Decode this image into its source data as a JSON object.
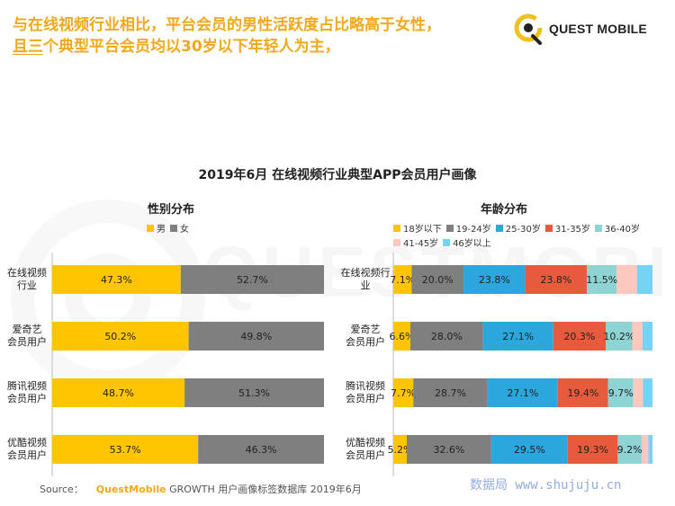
{
  "headline": {
    "line1": "与在线视频行业相比，平台会员的男性活跃度占比略高于女性，",
    "line2_emph": "且三",
    "line2_rest": "个典型平台会员均以30岁以下年轻人为主，"
  },
  "logo": {
    "text": "QUEST MOBILE",
    "watermark_text": "QUESTMOBILE"
  },
  "main_title": "2019年6月 在线视频行业典型APP会员用户画像",
  "source": {
    "prefix": "Source：",
    "brand": "QuestMobile",
    "text": "GROWTH 用户画像标签数据库 2019年6月"
  },
  "site_watermark": "数据局 www.shujuju.cn",
  "colors": {
    "accent": "#f0a91c",
    "male": "#ffc600",
    "female": "#7f7f7f",
    "age_18": "#ffc600",
    "age_19_24": "#7f7f7f",
    "age_25_30": "#2ba7de",
    "age_31_35": "#e85a3c",
    "age_36_40": "#8fd4d4",
    "age_41_45": "#ffc7bd",
    "age_46": "#77d2f6"
  },
  "chart_data": [
    {
      "type": "bar",
      "orientation": "horizontal-stacked-100",
      "title": "性别分布",
      "categories": [
        [
          "在线视频",
          "行业"
        ],
        [
          "爱奇艺",
          "会员用户"
        ],
        [
          "腾讯视频",
          "会员用户"
        ],
        [
          "优酷视频",
          "会员用户"
        ]
      ],
      "series": [
        {
          "name": "男",
          "color": "#ffc600",
          "values": [
            47.3,
            50.2,
            48.7,
            53.7
          ],
          "labels": [
            "47.3%",
            "50.2%",
            "48.7%",
            "53.7%"
          ]
        },
        {
          "name": "女",
          "color": "#7f7f7f",
          "values": [
            52.7,
            49.8,
            51.3,
            46.3
          ],
          "labels": [
            "52.7%",
            "49.8%",
            "51.3%",
            "46.3%"
          ]
        }
      ],
      "legend": "top"
    },
    {
      "type": "bar",
      "orientation": "horizontal-stacked-100",
      "title": "年龄分布",
      "categories": [
        [
          "在线视频行",
          "业"
        ],
        [
          "爱奇艺",
          "会员用户"
        ],
        [
          "腾讯视频",
          "会员用户"
        ],
        [
          "优酷视频",
          "会员用户"
        ]
      ],
      "series": [
        {
          "name": "18岁以下",
          "color": "#ffc600",
          "values": [
            7.1,
            6.6,
            7.7,
            5.2
          ],
          "labels": [
            "7.1%",
            "6.6%",
            "7.7%",
            "5.2%"
          ]
        },
        {
          "name": "19-24岁",
          "color": "#7f7f7f",
          "values": [
            20.0,
            28.0,
            28.7,
            32.6
          ],
          "labels": [
            "20.0%",
            "28.0%",
            "28.7%",
            "32.6%"
          ]
        },
        {
          "name": "25-30岁",
          "color": "#2ba7de",
          "values": [
            23.8,
            27.1,
            27.1,
            29.5
          ],
          "labels": [
            "23.8%",
            "27.1%",
            "27.1%",
            "29.5%"
          ]
        },
        {
          "name": "31-35岁",
          "color": "#e85a3c",
          "values": [
            23.8,
            20.3,
            19.4,
            19.3
          ],
          "labels": [
            "23.8%",
            "20.3%",
            "19.4%",
            "19.3%"
          ]
        },
        {
          "name": "36-40岁",
          "color": "#8fd4d4",
          "values": [
            11.5,
            10.2,
            9.7,
            9.2
          ],
          "labels": [
            "11.5%",
            "10.2%",
            "9.7%",
            "9.2%"
          ]
        },
        {
          "name": "41-45岁",
          "color": "#ffc7bd",
          "values": [
            7.8,
            3.9,
            3.7,
            2.6
          ],
          "labels": [
            "",
            "",
            "",
            ""
          ]
        },
        {
          "name": "46岁以上",
          "color": "#77d2f6",
          "values": [
            6.0,
            3.9,
            3.7,
            1.6
          ],
          "labels": [
            "",
            "",
            "",
            ""
          ]
        }
      ],
      "legend": "top"
    }
  ]
}
